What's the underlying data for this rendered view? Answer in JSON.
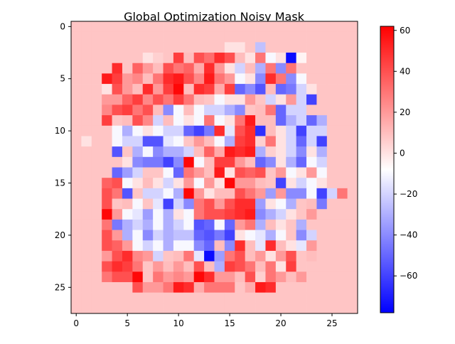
{
  "chart_data": {
    "type": "heatmap",
    "title": "Global Optimization Noisy Mask",
    "xlabel": "",
    "ylabel": "",
    "grid": false,
    "colormap": "bwr",
    "colormap_low": "#0000ff",
    "colormap_mid": "#ffffff",
    "colormap_high": "#ff0000",
    "background_value": 8,
    "vmin": -78,
    "vmax": 62,
    "x_ticks": [
      0,
      5,
      10,
      15,
      20,
      25
    ],
    "y_ticks": [
      0,
      5,
      10,
      15,
      20,
      25
    ],
    "colorbar_ticks": [
      60,
      40,
      20,
      0,
      -20,
      -40,
      -60
    ],
    "matrix": [
      [
        8,
        8,
        8,
        8,
        8,
        8,
        8,
        8,
        8,
        8,
        8,
        8,
        8,
        8,
        8,
        8,
        8,
        8,
        8,
        8,
        8,
        8,
        8,
        8,
        8,
        8,
        8,
        8
      ],
      [
        8,
        8,
        8,
        8,
        8,
        8,
        8,
        8,
        8,
        8,
        8,
        8,
        8,
        8,
        8,
        8,
        8,
        8,
        8,
        8,
        8,
        8,
        8,
        8,
        8,
        8,
        8,
        8
      ],
      [
        8,
        8,
        8,
        8,
        8,
        8,
        8,
        8,
        8,
        8,
        8,
        8,
        8,
        8,
        8,
        0,
        0,
        8,
        -25,
        8,
        8,
        8,
        8,
        8,
        8,
        8,
        8,
        8
      ],
      [
        8,
        8,
        8,
        8,
        8,
        8,
        8,
        0,
        5,
        8,
        45,
        10,
        40,
        32,
        50,
        40,
        10,
        0,
        30,
        -10,
        0,
        -75,
        -5,
        8,
        8,
        8,
        8,
        8
      ],
      [
        8,
        8,
        8,
        8,
        50,
        8,
        35,
        20,
        10,
        40,
        30,
        35,
        15,
        50,
        20,
        0,
        -20,
        10,
        -30,
        30,
        -40,
        30,
        8,
        8,
        8,
        8,
        8,
        8
      ],
      [
        8,
        8,
        8,
        55,
        45,
        20,
        25,
        10,
        30,
        50,
        55,
        40,
        25,
        55,
        30,
        20,
        -10,
        0,
        -40,
        50,
        30,
        -40,
        -10,
        8,
        8,
        8,
        8,
        8
      ],
      [
        8,
        8,
        8,
        0,
        40,
        20,
        10,
        50,
        20,
        45,
        60,
        10,
        50,
        45,
        15,
        45,
        -50,
        -40,
        -55,
        10,
        -50,
        -45,
        -20,
        0,
        8,
        8,
        8,
        8
      ],
      [
        8,
        8,
        8,
        20,
        20,
        35,
        45,
        25,
        40,
        30,
        45,
        30,
        10,
        8,
        -10,
        0,
        0,
        20,
        8,
        -20,
        0,
        20,
        -20,
        -60,
        8,
        8,
        8,
        8
      ],
      [
        8,
        8,
        8,
        25,
        40,
        45,
        30,
        40,
        10,
        -40,
        -10,
        10,
        -10,
        -20,
        -20,
        -30,
        -40,
        8,
        10,
        30,
        -50,
        -20,
        -20,
        8,
        8,
        8,
        8,
        8
      ],
      [
        8,
        8,
        8,
        45,
        8,
        10,
        40,
        25,
        -20,
        10,
        -10,
        0,
        -10,
        30,
        -10,
        0,
        30,
        55,
        10,
        10,
        -50,
        -30,
        -20,
        -50,
        -30,
        8,
        8,
        8
      ],
      [
        8,
        8,
        8,
        8,
        -10,
        -30,
        -10,
        0,
        -10,
        -20,
        -20,
        -50,
        -60,
        -45,
        50,
        -15,
        40,
        50,
        -65,
        10,
        0,
        -20,
        -60,
        -20,
        -20,
        8,
        8,
        8
      ],
      [
        8,
        0,
        8,
        8,
        -10,
        -20,
        -20,
        -55,
        -55,
        -15,
        -10,
        8,
        20,
        10,
        -10,
        -30,
        45,
        50,
        5,
        30,
        0,
        -20,
        -50,
        -20,
        -60,
        8,
        8,
        8
      ],
      [
        8,
        8,
        8,
        8,
        -55,
        8,
        -30,
        -10,
        -40,
        -30,
        -30,
        -20,
        10,
        35,
        15,
        55,
        50,
        55,
        -30,
        5,
        0,
        -20,
        -40,
        0,
        -30,
        8,
        8,
        8
      ],
      [
        8,
        8,
        8,
        8,
        8,
        0,
        -40,
        -45,
        -45,
        -60,
        -40,
        60,
        -10,
        10,
        45,
        45,
        20,
        10,
        -50,
        -40,
        0,
        -30,
        -50,
        -10,
        -20,
        8,
        8,
        8
      ],
      [
        8,
        8,
        8,
        8,
        -50,
        -35,
        -20,
        8,
        8,
        -10,
        -50,
        30,
        20,
        10,
        55,
        0,
        40,
        35,
        40,
        8,
        20,
        -10,
        0,
        20,
        -10,
        8,
        8,
        8
      ],
      [
        8,
        8,
        8,
        35,
        40,
        -10,
        0,
        10,
        0,
        -20,
        0,
        20,
        -10,
        20,
        0,
        60,
        20,
        20,
        10,
        8,
        -60,
        0,
        -20,
        -10,
        0,
        8,
        8,
        8
      ],
      [
        8,
        8,
        8,
        40,
        30,
        -55,
        8,
        -20,
        -20,
        -10,
        -30,
        60,
        20,
        0,
        10,
        10,
        40,
        30,
        20,
        -35,
        20,
        -40,
        -40,
        -10,
        -60,
        -20,
        30,
        8
      ],
      [
        8,
        8,
        8,
        40,
        8,
        10,
        -10,
        8,
        -15,
        -60,
        -20,
        -40,
        30,
        40,
        20,
        40,
        50,
        50,
        -35,
        0,
        -10,
        -30,
        8,
        10,
        -45,
        8,
        8,
        8
      ],
      [
        8,
        8,
        8,
        60,
        20,
        -10,
        -15,
        -35,
        -10,
        -30,
        0,
        -10,
        30,
        40,
        40,
        45,
        50,
        55,
        -40,
        -30,
        -20,
        0,
        8,
        20,
        8,
        8,
        8,
        8
      ],
      [
        8,
        8,
        8,
        30,
        -45,
        -30,
        -20,
        -30,
        -10,
        -30,
        -20,
        -10,
        -55,
        -50,
        -10,
        -50,
        20,
        30,
        -30,
        10,
        0,
        8,
        -30,
        8,
        8,
        8,
        8,
        8
      ],
      [
        8,
        8,
        8,
        40,
        20,
        -30,
        -10,
        -40,
        -20,
        -30,
        -25,
        -25,
        -50,
        -55,
        -45,
        -60,
        0,
        -10,
        -15,
        -30,
        -10,
        8,
        -40,
        -20,
        8,
        8,
        8,
        8
      ],
      [
        8,
        8,
        8,
        40,
        35,
        20,
        -10,
        -20,
        -10,
        -30,
        -10,
        -10,
        -40,
        -50,
        10,
        -40,
        50,
        10,
        -15,
        50,
        10,
        0,
        -15,
        20,
        8,
        8,
        8,
        8
      ],
      [
        8,
        8,
        8,
        20,
        40,
        50,
        25,
        20,
        -20,
        8,
        10,
        30,
        -15,
        -75,
        -35,
        30,
        40,
        10,
        20,
        0,
        20,
        40,
        8,
        10,
        8,
        8,
        8,
        8
      ],
      [
        8,
        8,
        8,
        40,
        50,
        45,
        30,
        8,
        20,
        10,
        20,
        10,
        40,
        10,
        -30,
        45,
        40,
        30,
        10,
        30,
        0,
        45,
        8,
        8,
        8,
        8,
        8,
        8
      ],
      [
        8,
        8,
        8,
        30,
        40,
        40,
        60,
        8,
        30,
        20,
        25,
        20,
        60,
        50,
        20,
        20,
        10,
        40,
        5,
        30,
        20,
        10,
        20,
        8,
        8,
        8,
        8,
        8
      ],
      [
        8,
        8,
        8,
        8,
        8,
        8,
        40,
        20,
        20,
        30,
        55,
        50,
        15,
        30,
        30,
        30,
        8,
        15,
        55,
        50,
        8,
        8,
        8,
        8,
        8,
        8,
        8,
        8
      ],
      [
        8,
        8,
        8,
        8,
        8,
        8,
        8,
        8,
        8,
        8,
        8,
        8,
        8,
        8,
        8,
        8,
        8,
        8,
        8,
        8,
        8,
        8,
        8,
        8,
        8,
        8,
        8,
        8
      ],
      [
        8,
        8,
        8,
        8,
        8,
        8,
        8,
        8,
        8,
        8,
        8,
        8,
        8,
        8,
        8,
        8,
        8,
        8,
        8,
        8,
        8,
        8,
        8,
        8,
        8,
        8,
        8,
        8
      ]
    ]
  }
}
